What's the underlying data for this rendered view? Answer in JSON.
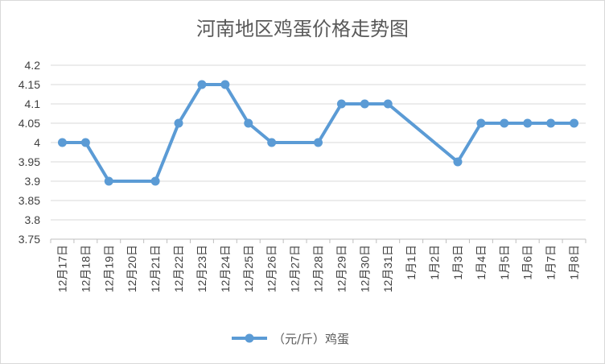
{
  "chart_data": {
    "type": "line",
    "title": "河南地区鸡蛋价格走势图",
    "categories": [
      "12月17日",
      "12月18日",
      "12月19日",
      "12月20日",
      "12月21日",
      "12月22日",
      "12月23日",
      "12月24日",
      "12月25日",
      "12月26日",
      "12月27日",
      "12月28日",
      "12月29日",
      "12月30日",
      "12月31日",
      "1月1日",
      "1月2日",
      "1月3日",
      "1月4日",
      "1月5日",
      "1月6日",
      "1月7日",
      "1月8日"
    ],
    "series": [
      {
        "name": "（元/斤）鸡蛋",
        "color": "#5b9bd5",
        "values": [
          4.0,
          4.0,
          3.9,
          null,
          3.9,
          4.05,
          4.15,
          4.15,
          4.05,
          4.0,
          null,
          4.0,
          4.1,
          4.1,
          4.1,
          null,
          null,
          3.95,
          4.05,
          4.05,
          4.05,
          4.05,
          4.05
        ]
      }
    ],
    "ylim": [
      3.75,
      4.2
    ],
    "yticks": [
      "4.2",
      "4.15",
      "4.1",
      "4.05",
      "4",
      "3.95",
      "3.9",
      "3.85",
      "3.8",
      "3.75"
    ],
    "grid": true,
    "legend_position": "bottom"
  }
}
